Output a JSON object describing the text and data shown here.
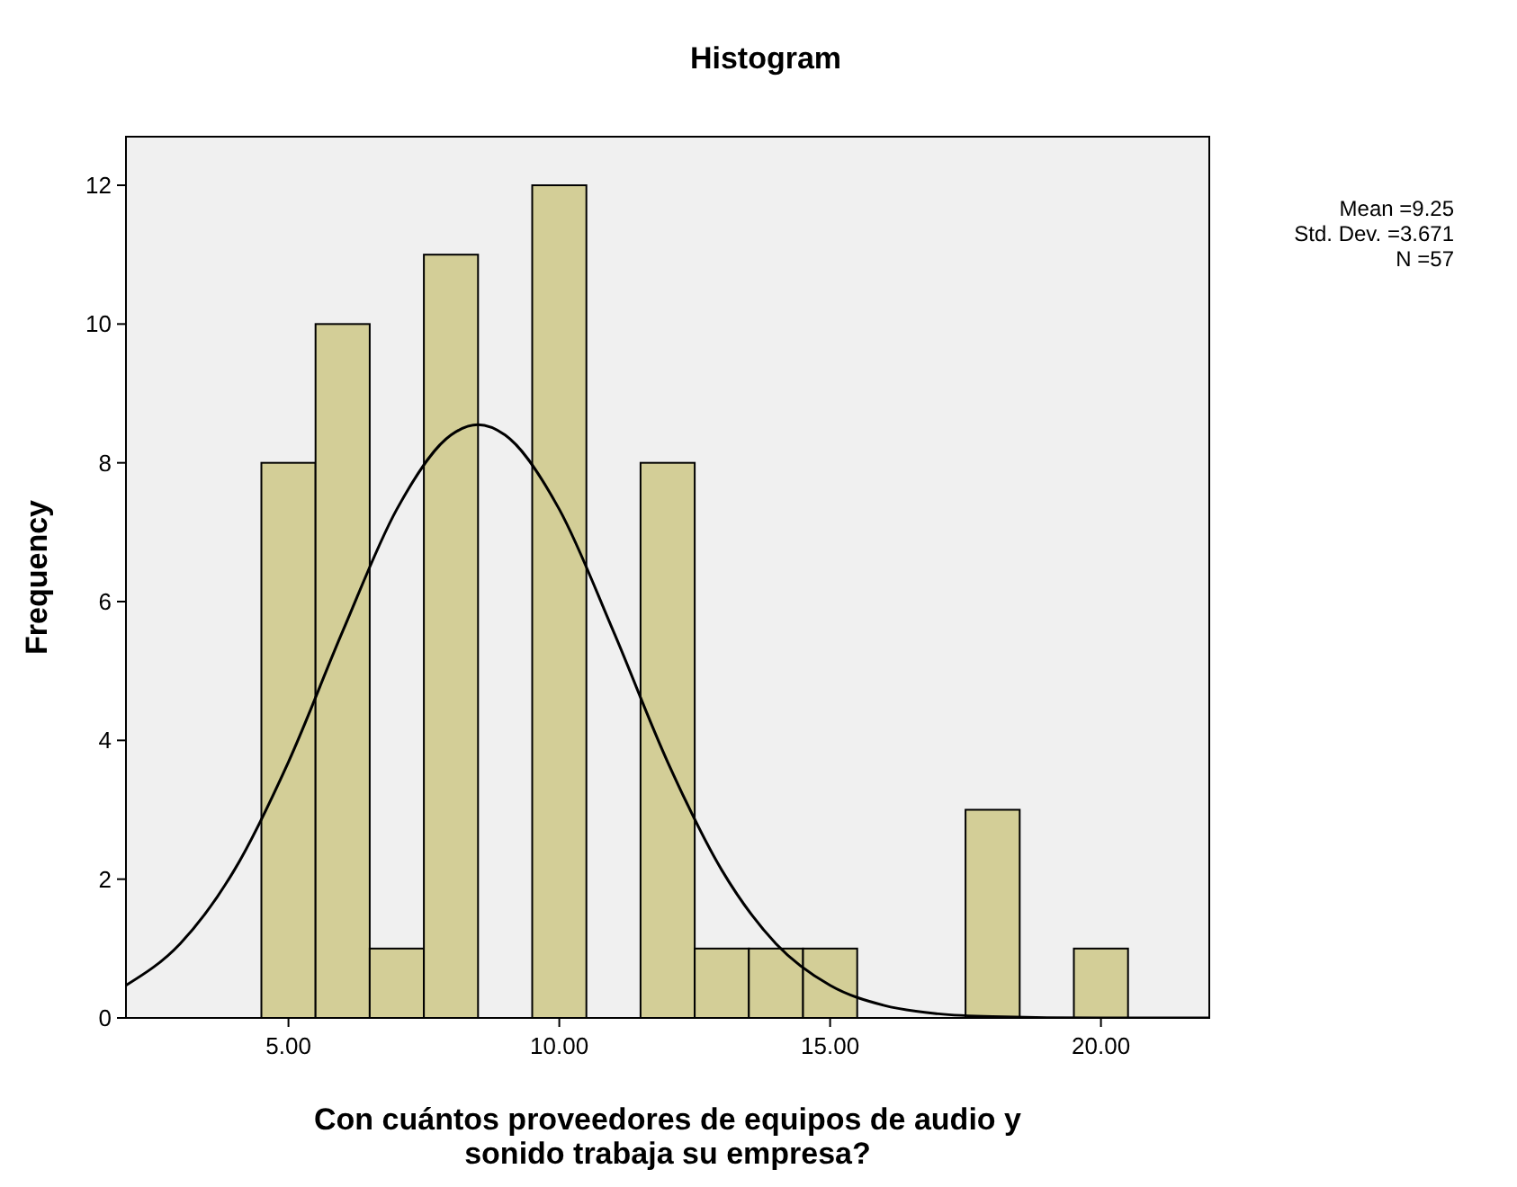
{
  "chart_data": {
    "type": "histogram",
    "title": "Histogram",
    "xlabel": "Con cuántos proveedores de equipos de audio y sonido trabaja su empresa?",
    "ylabel": "Frequency",
    "bins": [
      4.5,
      5.5,
      6.5,
      7.5,
      8.5,
      9.5,
      10.5,
      11.5,
      12.5,
      13.5,
      14.5,
      15.5,
      16.5,
      17.5,
      18.5,
      19.5,
      20.5
    ],
    "series": [
      {
        "color": "#d3ce97",
        "values": [
          8,
          10,
          1,
          11,
          0,
          12,
          0,
          8,
          1,
          1,
          1,
          0,
          0,
          3,
          0,
          1
        ]
      },
      {
        "type": "line",
        "color": "#000000",
        "x": [
          2,
          3,
          4,
          5,
          6,
          7,
          8,
          8.5,
          9,
          10,
          11,
          12,
          13,
          14,
          15,
          16,
          17,
          18,
          20,
          22
        ],
        "values": [
          0.47,
          1.07,
          2.13,
          3.69,
          5.57,
          7.33,
          8.4,
          8.55,
          8.4,
          7.33,
          5.57,
          3.69,
          2.13,
          1.07,
          0.47,
          0.18,
          0.06,
          0.02,
          0,
          0
        ]
      }
    ],
    "xlim": [
      2,
      22
    ],
    "ylim": [
      0,
      12.7
    ],
    "xticks": [
      {
        "value": 5,
        "label": "5.00"
      },
      {
        "value": 10,
        "label": "10.00"
      },
      {
        "value": 15,
        "label": "15.00"
      },
      {
        "value": 20,
        "label": "20.00"
      }
    ],
    "yticks": [
      0,
      2,
      4,
      6,
      8,
      10,
      12
    ],
    "grid": false,
    "marker": "none",
    "line_style": "solid",
    "annotations": [
      "Mean =9.25",
      "Std. Dev. =3.671",
      "N =57"
    ]
  }
}
